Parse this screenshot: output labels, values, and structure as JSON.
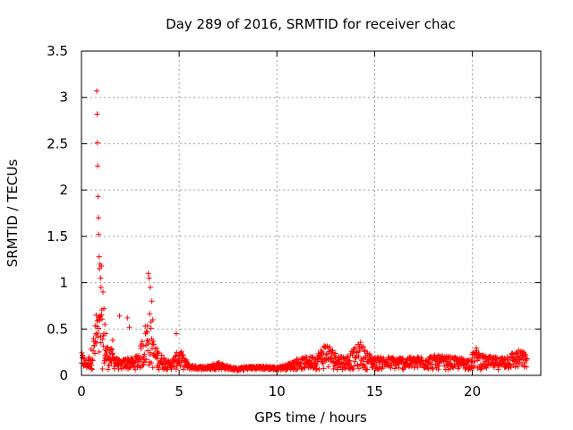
{
  "chart_data": {
    "type": "scatter",
    "title": "Day 289 of 2016, SRMTID for receiver chac",
    "xlabel": "GPS time / hours",
    "ylabel": "SRMTID / TECUs",
    "xlim": [
      0,
      23.5
    ],
    "ylim": [
      0,
      3.5
    ],
    "grid": true,
    "marker": "+",
    "marker_color": "#ff0000",
    "x_ticks": [
      0,
      5,
      10,
      15,
      20
    ],
    "x_tick_labels": [
      "0",
      "5",
      "10",
      "15",
      "20"
    ],
    "y_ticks": [
      0,
      0.5,
      1,
      1.5,
      2,
      2.5,
      3,
      3.5
    ],
    "y_tick_labels": [
      "0",
      "0.5",
      "1",
      "1.5",
      "2",
      "2.5",
      "3",
      "3.5"
    ],
    "series": [
      {
        "name": "SRMTID",
        "envelope": {
          "x": [
            0.0,
            0.3,
            0.5,
            0.7,
            0.8,
            0.9,
            1.0,
            1.2,
            1.5,
            1.8,
            2.0,
            2.3,
            2.7,
            3.0,
            3.3,
            3.5,
            3.7,
            4.0,
            4.5,
            4.8,
            5.0,
            5.5,
            6.0,
            6.5,
            7.0,
            7.5,
            8.0,
            8.5,
            9.0,
            9.5,
            10.0,
            10.5,
            11.0,
            11.5,
            12.0,
            12.3,
            12.5,
            12.8,
            13.0,
            13.5,
            14.0,
            14.3,
            14.5,
            15.0,
            16.0,
            17.0,
            18.0,
            19.0,
            19.8,
            20.2,
            20.5,
            21.0,
            21.5,
            22.0,
            22.5,
            22.8
          ],
          "y": [
            0.25,
            0.15,
            0.3,
            0.55,
            0.7,
            0.65,
            0.8,
            0.35,
            0.3,
            0.2,
            0.15,
            0.2,
            0.18,
            0.3,
            0.6,
            0.7,
            0.35,
            0.25,
            0.15,
            0.22,
            0.3,
            0.12,
            0.1,
            0.1,
            0.15,
            0.1,
            0.08,
            0.1,
            0.1,
            0.1,
            0.09,
            0.12,
            0.18,
            0.2,
            0.22,
            0.3,
            0.38,
            0.3,
            0.25,
            0.2,
            0.3,
            0.38,
            0.28,
            0.2,
            0.2,
            0.2,
            0.22,
            0.2,
            0.18,
            0.3,
            0.22,
            0.2,
            0.2,
            0.25,
            0.28,
            0.22
          ]
        },
        "outliers": {
          "x": [
            0.75,
            0.78,
            0.8,
            0.82,
            0.83,
            0.85,
            0.87,
            0.88,
            0.9,
            0.92,
            0.95,
            0.98,
            1.0,
            1.02,
            1.1,
            1.15,
            1.2,
            1.25,
            1.6,
            1.95,
            2.35,
            2.45,
            3.42,
            3.46,
            3.52,
            3.6,
            3.65,
            4.85
          ],
          "y": [
            0.65,
            3.07,
            2.82,
            2.51,
            2.26,
            1.93,
            1.7,
            1.52,
            1.28,
            1.15,
            1.2,
            1.05,
            0.95,
            1.18,
            0.9,
            0.72,
            0.55,
            0.45,
            0.38,
            0.64,
            0.62,
            0.52,
            1.1,
            1.05,
            0.95,
            0.8,
            0.6,
            0.45
          ]
        },
        "n_points": 1300
      }
    ]
  }
}
